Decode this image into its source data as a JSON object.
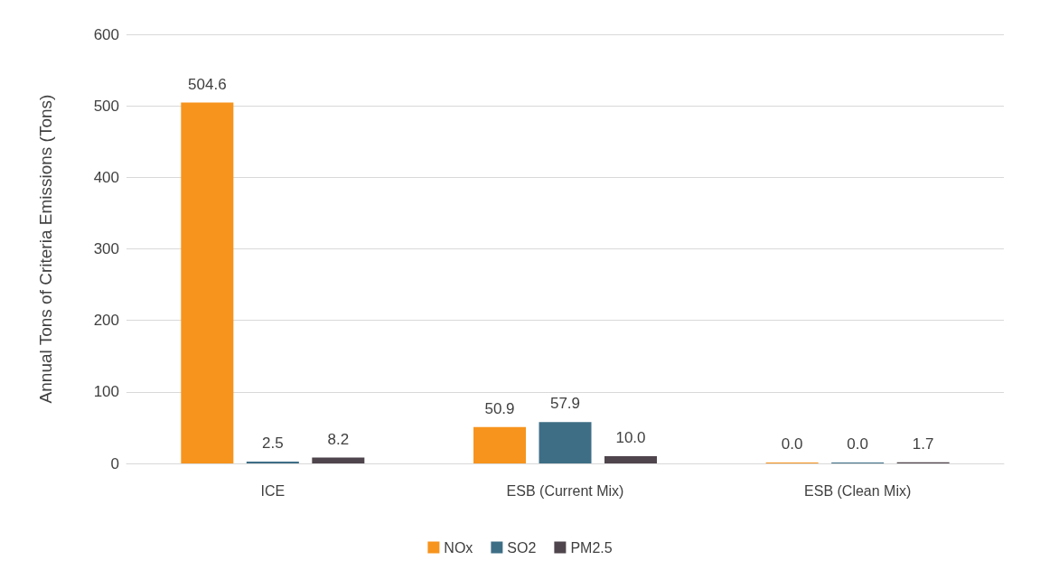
{
  "chart_data": {
    "type": "bar",
    "ylabel": "Annual Tons of Criteria Emissions (Tons)",
    "categories": [
      "ICE",
      "ESB (Current Mix)",
      "ESB (Clean Mix)"
    ],
    "series": [
      {
        "name": "NOx",
        "color": "#f7941d",
        "values": [
          504.6,
          50.9,
          0
        ],
        "value_labels": [
          "504.6",
          "50.9",
          "0.0"
        ]
      },
      {
        "name": "SO2",
        "color": "#3e6e86",
        "values": [
          2.5,
          57.9,
          0
        ],
        "value_labels": [
          "2.5",
          "57.9",
          "0.0"
        ]
      },
      {
        "name": "PM2.5",
        "color": "#4f454c",
        "values": [
          8.2,
          10,
          1.7
        ],
        "value_labels": [
          "8.2",
          "10.0",
          "1.7"
        ]
      }
    ],
    "ylim": [
      0,
      600
    ],
    "yticks": [
      0,
      100,
      200,
      300,
      400,
      500,
      600
    ],
    "grid": "y",
    "legend": "bottom"
  }
}
